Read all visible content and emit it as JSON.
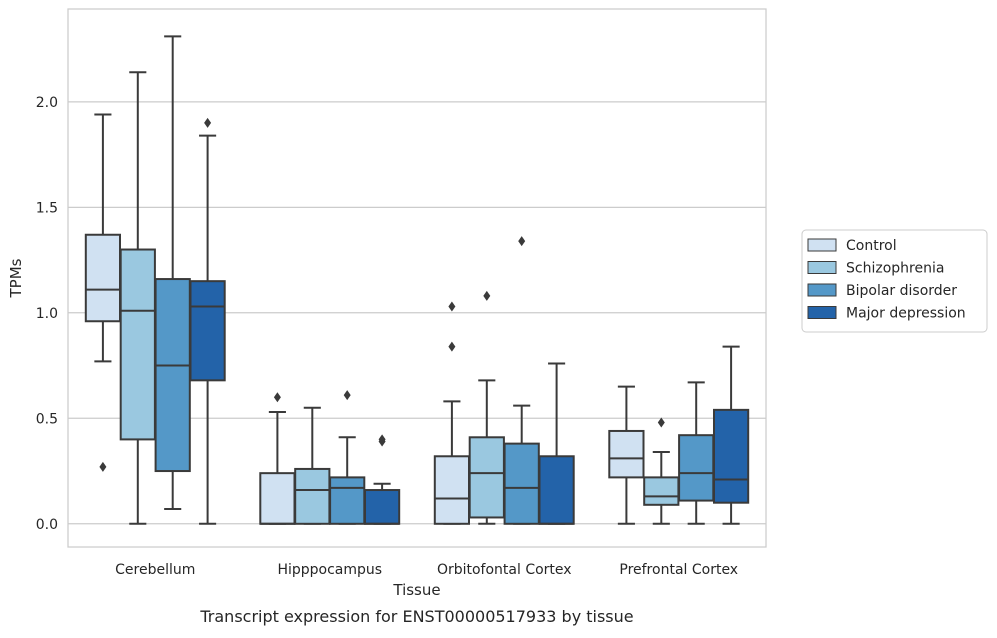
{
  "caption": "Transcript expression for ENST00000517933 by tissue",
  "chart_data": {
    "type": "box",
    "xlabel": "Tissue",
    "ylabel": "TPMs",
    "ylim": [
      -0.11,
      2.44
    ],
    "yticks": [
      0.0,
      0.5,
      1.0,
      1.5,
      2.0
    ],
    "ytick_labels": [
      "0.0",
      "0.5",
      "1.0",
      "1.5",
      "2.0"
    ],
    "grid": "horizontal",
    "legend_position": "right",
    "categories": [
      "Cerebellum",
      "Hipppocampus",
      "Orbitofontal Cortex",
      "Prefrontal Cortex"
    ],
    "series": [
      {
        "name": "Control",
        "color": "#d0e1f2",
        "boxes": [
          {
            "whislo": 0.77,
            "q1": 0.96,
            "med": 1.11,
            "q3": 1.37,
            "whishi": 1.94,
            "fliers": [
              0.27
            ]
          },
          {
            "whislo": 0.0,
            "q1": 0.0,
            "med": 0.0,
            "q3": 0.24,
            "whishi": 0.53,
            "fliers": [
              0.6
            ]
          },
          {
            "whislo": 0.0,
            "q1": 0.0,
            "med": 0.12,
            "q3": 0.32,
            "whishi": 0.58,
            "fliers": [
              0.84,
              1.03
            ]
          },
          {
            "whislo": 0.0,
            "q1": 0.22,
            "med": 0.31,
            "q3": 0.44,
            "whishi": 0.65,
            "fliers": []
          }
        ]
      },
      {
        "name": "Schizophrenia",
        "color": "#9ac8e0",
        "boxes": [
          {
            "whislo": 0.0,
            "q1": 0.4,
            "med": 1.01,
            "q3": 1.3,
            "whishi": 2.14,
            "fliers": []
          },
          {
            "whislo": 0.0,
            "q1": 0.0,
            "med": 0.16,
            "q3": 0.26,
            "whishi": 0.55,
            "fliers": []
          },
          {
            "whislo": 0.0,
            "q1": 0.03,
            "med": 0.24,
            "q3": 0.41,
            "whishi": 0.68,
            "fliers": [
              1.08
            ]
          },
          {
            "whislo": 0.0,
            "q1": 0.09,
            "med": 0.13,
            "q3": 0.22,
            "whishi": 0.34,
            "fliers": [
              0.48
            ]
          }
        ]
      },
      {
        "name": "Bipolar disorder",
        "color": "#5498c8",
        "boxes": [
          {
            "whislo": 0.07,
            "q1": 0.25,
            "med": 0.75,
            "q3": 1.16,
            "whishi": 2.31,
            "fliers": []
          },
          {
            "whislo": 0.0,
            "q1": 0.0,
            "med": 0.17,
            "q3": 0.22,
            "whishi": 0.41,
            "fliers": [
              0.61
            ]
          },
          {
            "whislo": 0.0,
            "q1": 0.0,
            "med": 0.17,
            "q3": 0.38,
            "whishi": 0.56,
            "fliers": [
              1.34
            ]
          },
          {
            "whislo": 0.0,
            "q1": 0.11,
            "med": 0.24,
            "q3": 0.42,
            "whishi": 0.67,
            "fliers": []
          }
        ]
      },
      {
        "name": "Major depression",
        "color": "#2363a9",
        "boxes": [
          {
            "whislo": 0.0,
            "q1": 0.68,
            "med": 1.03,
            "q3": 1.15,
            "whishi": 1.84,
            "fliers": [
              1.9
            ]
          },
          {
            "whislo": 0.0,
            "q1": 0.0,
            "med": 0.0,
            "q3": 0.16,
            "whishi": 0.19,
            "fliers": [
              0.39,
              0.4
            ]
          },
          {
            "whislo": 0.0,
            "q1": 0.0,
            "med": 0.0,
            "q3": 0.32,
            "whishi": 0.76,
            "fliers": []
          },
          {
            "whislo": 0.0,
            "q1": 0.1,
            "med": 0.21,
            "q3": 0.54,
            "whishi": 0.84,
            "fliers": []
          }
        ]
      }
    ]
  }
}
